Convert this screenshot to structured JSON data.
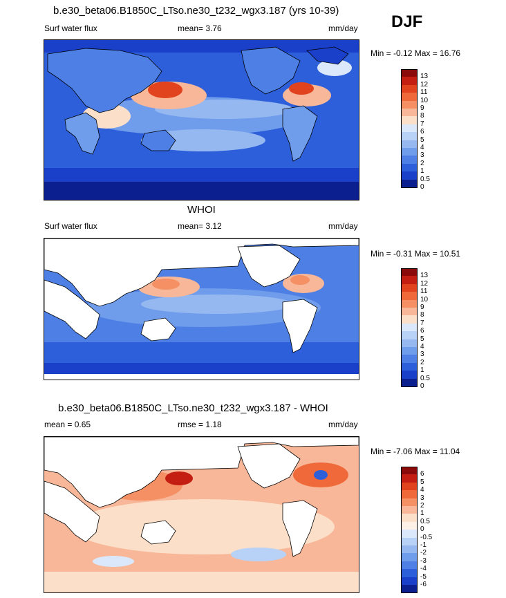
{
  "season": "DJF",
  "panels": [
    {
      "title": "b.e30_beta06.B1850C_LTso.ne30_t232_wgx3.187 (yrs 10-39)",
      "left_label": "Surf water flux",
      "center_label": "mean=  3.76",
      "right_label": "mm/day",
      "minmax": "Min =  -0.12 Max =  16.76",
      "colorbar": {
        "colors": [
          "#8b0a0a",
          "#c41e12",
          "#e2431f",
          "#f0693a",
          "#f49064",
          "#f8b798",
          "#fcdfc8",
          "#dbe8fb",
          "#b8d2f7",
          "#95b8f1",
          "#6f9ceb",
          "#4d7fe4",
          "#2d5fda",
          "#1a3fc8",
          "#0b1f8e"
        ],
        "labels": [
          "13",
          "12",
          "11",
          "10",
          "9",
          "8",
          "7",
          "6",
          "5",
          "4",
          "3",
          "2",
          "1",
          "0.5",
          "0"
        ]
      }
    },
    {
      "title": "WHOI",
      "left_label": "Surf water flux",
      "center_label": "mean=  3.12",
      "right_label": "mm/day",
      "minmax": "Min =  -0.31 Max =  10.51",
      "colorbar": {
        "colors": [
          "#8b0a0a",
          "#c41e12",
          "#e2431f",
          "#f0693a",
          "#f49064",
          "#f8b798",
          "#fcdfc8",
          "#dbe8fb",
          "#b8d2f7",
          "#95b8f1",
          "#6f9ceb",
          "#4d7fe4",
          "#2d5fda",
          "#1a3fc8",
          "#0b1f8e"
        ],
        "labels": [
          "13",
          "12",
          "11",
          "10",
          "9",
          "8",
          "7",
          "6",
          "5",
          "4",
          "3",
          "2",
          "1",
          "0.5",
          "0"
        ]
      }
    },
    {
      "title": "b.e30_beta06.B1850C_LTso.ne30_t232_wgx3.187 - WHOI",
      "left_label": "mean =  0.65",
      "center_label": "rmse =  1.18",
      "right_label": "mm/day",
      "minmax": "Min =  -7.06 Max =  11.04",
      "colorbar": {
        "colors": [
          "#8b0a0a",
          "#c41e12",
          "#e2431f",
          "#f0693a",
          "#f49064",
          "#f8b798",
          "#fcdfc8",
          "#fdf0e6",
          "#dbe8fb",
          "#b8d2f7",
          "#95b8f1",
          "#6f9ceb",
          "#4d7fe4",
          "#2d5fda",
          "#1a3fc8",
          "#0b1f8e"
        ],
        "labels": [
          "6",
          "5",
          "4",
          "3",
          "2",
          "1",
          "0.5",
          "0",
          "-0.5",
          "-1",
          "-2",
          "-3",
          "-4",
          "-5",
          "-6"
        ]
      }
    }
  ]
}
